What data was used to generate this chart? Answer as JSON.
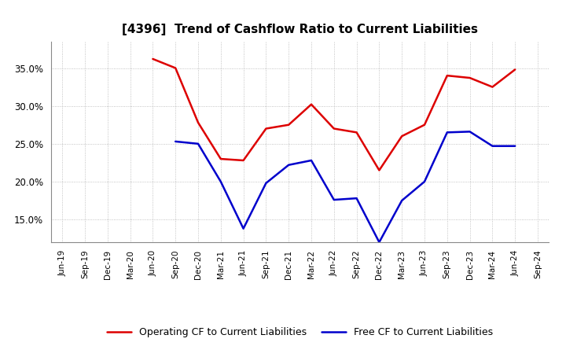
{
  "title": "[4396]  Trend of Cashflow Ratio to Current Liabilities",
  "x_labels": [
    "Jun-19",
    "Sep-19",
    "Dec-19",
    "Mar-20",
    "Jun-20",
    "Sep-20",
    "Dec-20",
    "Mar-21",
    "Jun-21",
    "Sep-21",
    "Dec-21",
    "Mar-22",
    "Jun-22",
    "Sep-22",
    "Dec-22",
    "Mar-23",
    "Jun-23",
    "Sep-23",
    "Dec-23",
    "Mar-24",
    "Jun-24",
    "Sep-24"
  ],
  "operating_cf": [
    null,
    null,
    null,
    null,
    0.362,
    0.35,
    0.278,
    0.23,
    0.228,
    0.27,
    0.275,
    0.302,
    0.27,
    0.265,
    0.215,
    0.26,
    0.275,
    0.34,
    0.337,
    0.325,
    0.348,
    null
  ],
  "free_cf": [
    null,
    null,
    null,
    null,
    null,
    0.253,
    0.25,
    0.2,
    0.138,
    0.198,
    0.222,
    0.228,
    0.176,
    0.178,
    0.12,
    0.175,
    0.2,
    0.265,
    0.266,
    0.247,
    0.247,
    null
  ],
  "ylim_min": 0.12,
  "ylim_max": 0.385,
  "yticks": [
    0.15,
    0.2,
    0.25,
    0.3,
    0.35
  ],
  "operating_color": "#dd0000",
  "free_color": "#0000cc",
  "background_color": "#ffffff",
  "grid_color": "#aaaaaa",
  "title_fontsize": 11,
  "tick_fontsize": 7.5,
  "legend_fontsize": 9
}
